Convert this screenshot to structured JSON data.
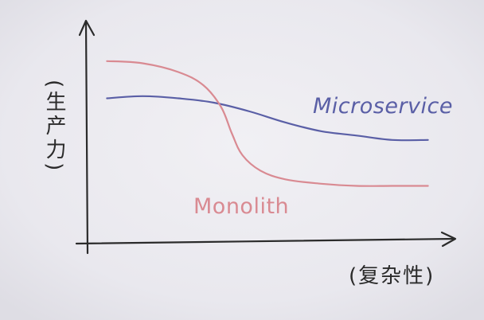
{
  "chart_data": {
    "type": "line",
    "ylabel": "(生产力)",
    "xlabel": "(复杂性)",
    "series": [
      {
        "name": "Microservice",
        "color": "#5a5fa6",
        "x": [
          0.05,
          0.15,
          0.25,
          0.35,
          0.45,
          0.55,
          0.65,
          0.75,
          0.85,
          0.95
        ],
        "y": [
          0.66,
          0.67,
          0.66,
          0.64,
          0.6,
          0.55,
          0.51,
          0.49,
          0.47,
          0.47
        ]
      },
      {
        "name": "Monolith",
        "color": "#d98a92",
        "x": [
          0.05,
          0.15,
          0.25,
          0.32,
          0.37,
          0.4,
          0.43,
          0.48,
          0.55,
          0.65,
          0.75,
          0.85,
          0.95
        ],
        "y": [
          0.83,
          0.82,
          0.78,
          0.72,
          0.62,
          0.5,
          0.4,
          0.33,
          0.29,
          0.27,
          0.26,
          0.26,
          0.26
        ]
      }
    ],
    "xlim": [
      0,
      1
    ],
    "ylim": [
      0,
      1
    ],
    "grid": false,
    "legend": "inline-labels"
  }
}
